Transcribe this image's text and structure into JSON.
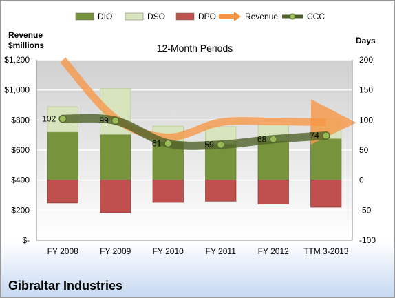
{
  "chart_data": {
    "type": "bar",
    "subtitle": "12-Month Periods",
    "company": "Gibraltar Industries",
    "left_axis_title": [
      "Revenue",
      "$millions"
    ],
    "right_axis_title": "Days",
    "categories": [
      "FY 2008",
      "FY 2009",
      "FY 2010",
      "FY 2011",
      "FY 2012",
      "TTM 3-2013"
    ],
    "left_axis": {
      "min": 0,
      "max": 1200,
      "step": 200,
      "tick_labels": [
        "$-",
        "$200",
        "$400",
        "$600",
        "$800",
        "$1,000",
        "$1,200"
      ]
    },
    "right_axis": {
      "min": -100,
      "max": 200,
      "step": 50,
      "tick_labels": [
        "-100",
        "-50",
        "0",
        "50",
        "100",
        "150",
        "200"
      ]
    },
    "legend_position": "top",
    "grid": true,
    "series": [
      {
        "name": "DIO",
        "kind": "stacked-bar",
        "axis": "right",
        "color": "#77933c",
        "values": [
          80,
          76,
          64,
          60,
          65,
          69
        ]
      },
      {
        "name": "DSO",
        "kind": "stacked-bar",
        "axis": "right",
        "color": "#d7e4bd",
        "values": [
          42,
          76,
          26,
          29,
          27,
          33
        ]
      },
      {
        "name": "DPO",
        "kind": "stacked-bar-negative",
        "axis": "right",
        "color": "#c0504d",
        "values": [
          -38,
          -54,
          -37,
          -35,
          -40,
          -45
        ]
      },
      {
        "name": "Revenue",
        "kind": "line",
        "axis": "left",
        "color": "#f79646",
        "values": [
          1200,
          810,
          685,
          785,
          790,
          785
        ]
      },
      {
        "name": "CCC",
        "kind": "line",
        "axis": "right",
        "color": "#4f6228",
        "values": [
          102,
          99,
          61,
          59,
          68,
          74
        ],
        "data_labels": [
          "102",
          "99",
          "61",
          "59",
          "68",
          "74"
        ]
      }
    ]
  },
  "colors": {
    "plot_gradient_top": "#d0d0d0",
    "plot_gradient_bottom": "#ffffff",
    "bottom_band": "#dbe6f4"
  }
}
